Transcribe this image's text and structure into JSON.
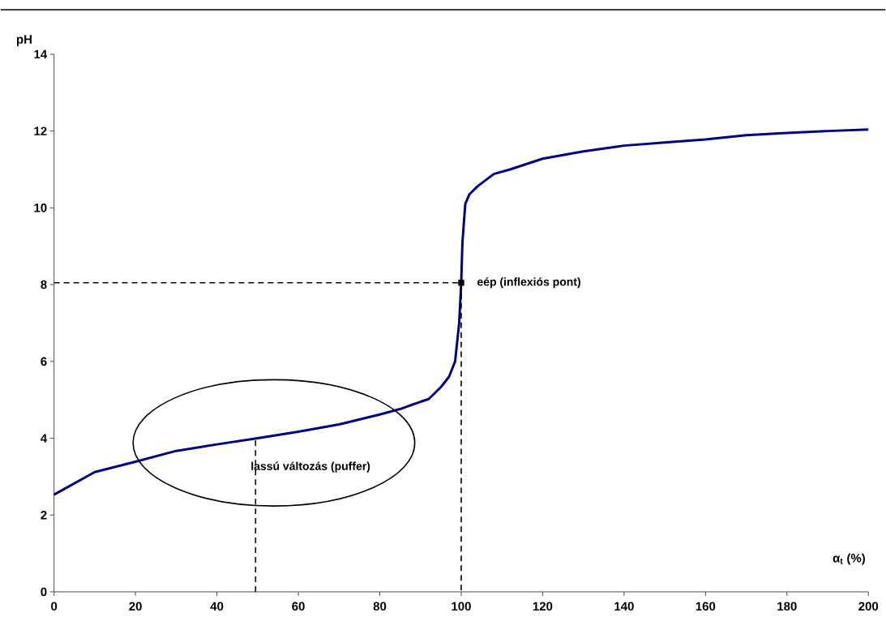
{
  "chart_data": {
    "type": "line",
    "xlabel": "α$_{t}$ (%)",
    "ylabel": "pH",
    "xlim": [
      0,
      200
    ],
    "ylim": [
      0,
      14
    ],
    "xticks": [
      0,
      20,
      40,
      60,
      80,
      100,
      120,
      140,
      160,
      180,
      200
    ],
    "yticks": [
      0,
      2,
      4,
      6,
      8,
      10,
      12,
      14
    ],
    "grid": false,
    "series": [
      {
        "color": "#000080",
        "x": [
          0,
          10,
          20,
          30,
          40,
          50,
          60,
          70,
          80,
          85,
          90,
          92,
          95,
          97,
          98.5,
          99.5,
          100,
          100.3,
          101,
          102,
          104,
          108,
          112,
          120,
          130,
          140,
          150,
          160,
          170,
          180,
          190,
          200
        ],
        "values": [
          2.53,
          3.12,
          3.39,
          3.67,
          3.84,
          4.0,
          4.17,
          4.36,
          4.62,
          4.76,
          4.95,
          5.02,
          5.33,
          5.6,
          6.0,
          7.0,
          8.05,
          9.1,
          10.1,
          10.35,
          10.56,
          10.88,
          11.0,
          11.28,
          11.47,
          11.62,
          11.7,
          11.78,
          11.89,
          11.95,
          12.0,
          12.04
        ]
      },
      {
        "type": "line",
        "line_style": "dashed",
        "color": "#000000",
        "x": [
          0,
          100,
          100
        ],
        "values": [
          8.05,
          8.05,
          0
        ]
      },
      {
        "type": "line",
        "line_style": "dashed",
        "color": "#000000",
        "x": [
          49.5,
          49.5
        ],
        "values": [
          0,
          4.0
        ]
      },
      {
        "type": "scatter",
        "marker": "square",
        "color": "#000000",
        "x": [
          100
        ],
        "values": [
          8.05
        ]
      }
    ],
    "annotations": [
      {
        "text": "eép (inflexiós pont)",
        "x": 100,
        "y": 8.05
      },
      "lassú változás (puffer)"
    ]
  }
}
